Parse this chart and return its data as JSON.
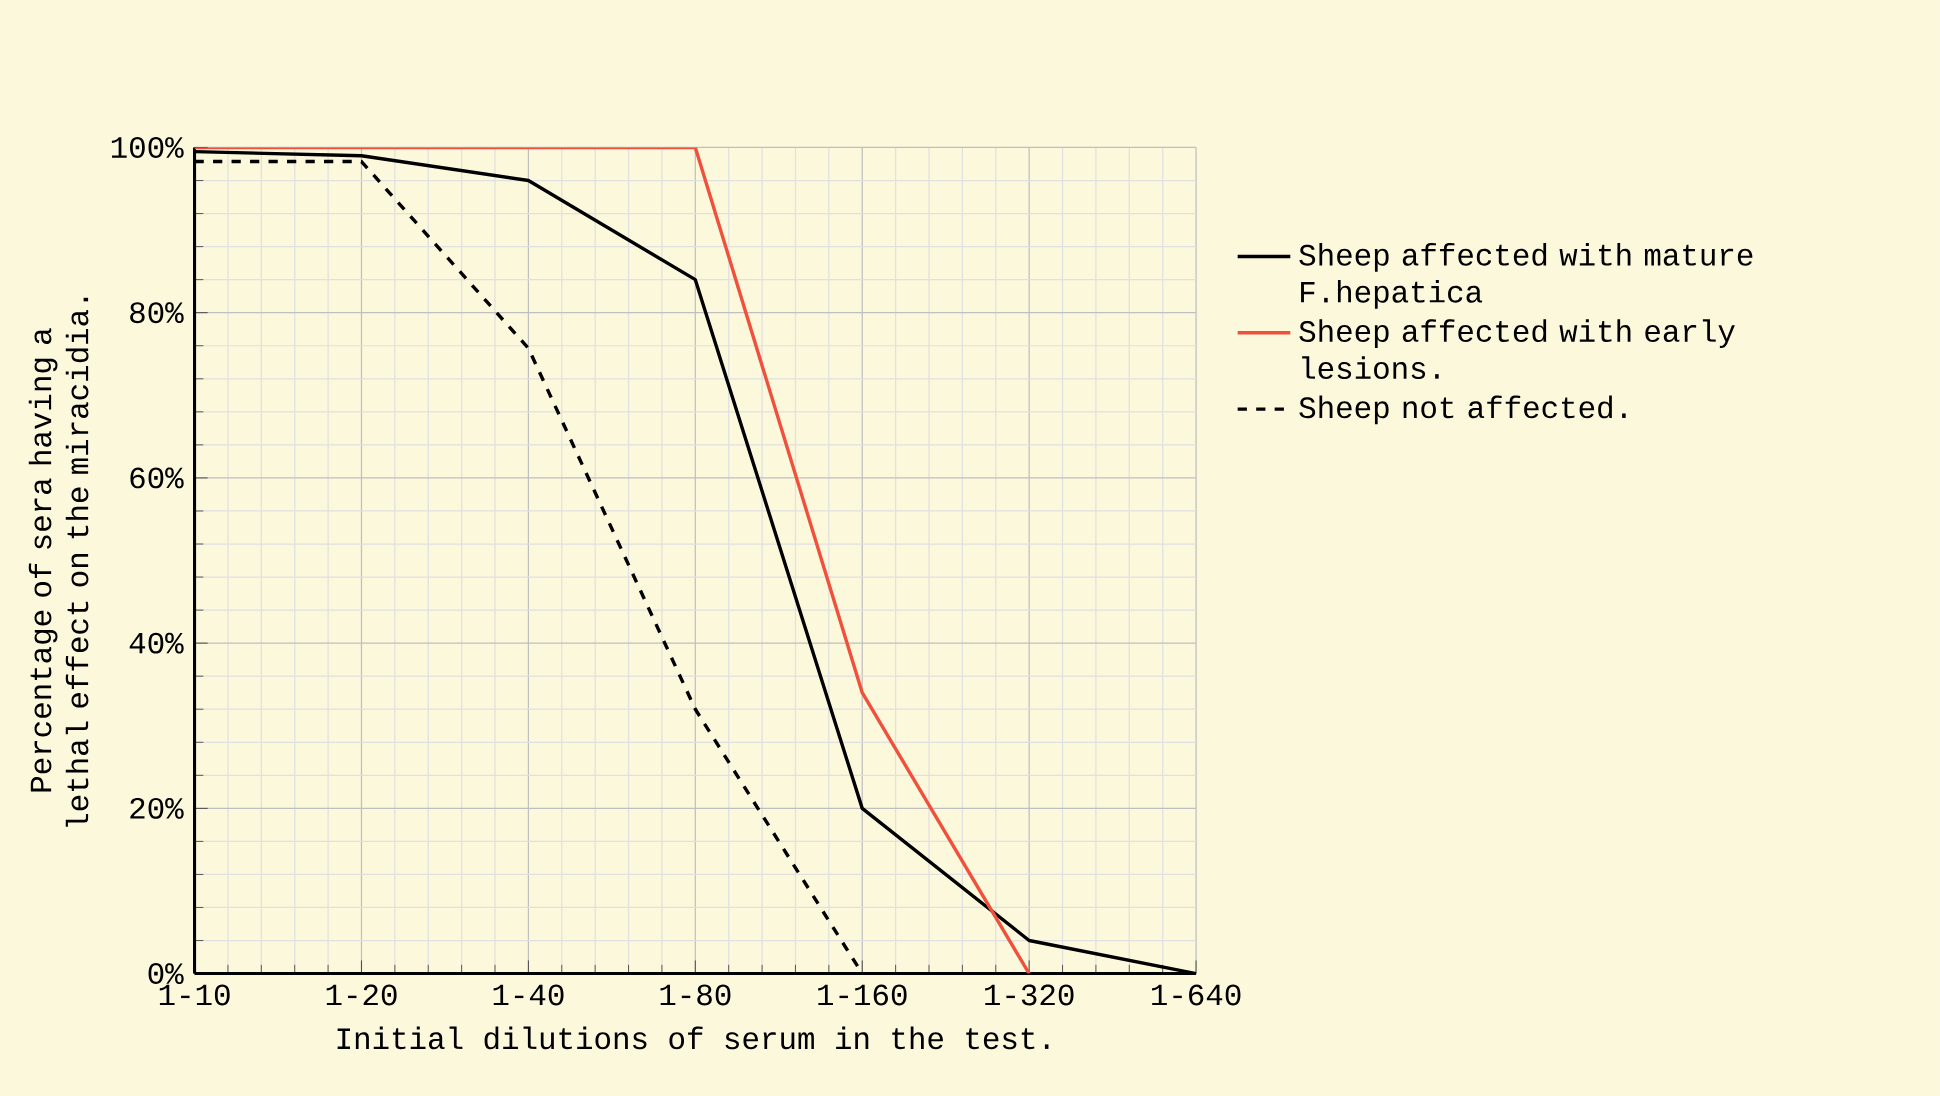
{
  "chart_data": {
    "type": "line",
    "xlabel": "Initial dilutions of serum in the test.",
    "ylabel": "Percentage of sera having a lethal effect on the miracidia.",
    "categories": [
      "1-10",
      "1-20",
      "1-40",
      "1-80",
      "1-160",
      "1-320",
      "1-640"
    ],
    "series": [
      {
        "name": "Sheep affected with mature F.hepatica",
        "color": "#000000",
        "values": [
          99.5,
          99,
          96,
          84,
          20,
          4,
          0
        ],
        "line_style": "solid"
      },
      {
        "name": "Sheep affected with early lesions.",
        "color": "#f0503c",
        "values": [
          100,
          100,
          100,
          100,
          34,
          0,
          null
        ],
        "line_style": "solid"
      },
      {
        "name": "Sheep not affected.",
        "color": "#000000",
        "values": [
          98.3,
          98.3,
          75.7,
          32,
          0,
          null,
          null
        ],
        "line_style": "dashed"
      }
    ],
    "ylim": [
      0,
      100
    ],
    "yticks": [
      {
        "value": 0,
        "label": "0%"
      },
      {
        "value": 20,
        "label": "20%"
      },
      {
        "value": 40,
        "label": "40%"
      },
      {
        "value": 60,
        "label": "60%"
      },
      {
        "value": 80,
        "label": "80%"
      },
      {
        "value": 100,
        "label": "100%"
      }
    ],
    "grid": true,
    "legend": "right",
    "marker": "none"
  }
}
